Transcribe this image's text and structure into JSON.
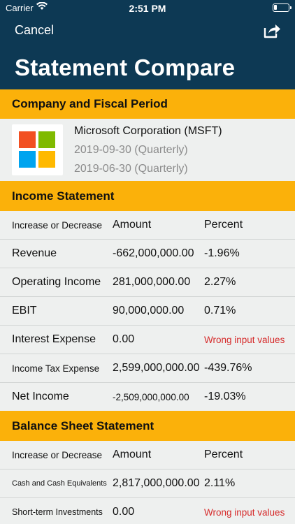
{
  "status_bar": {
    "carrier": "Carrier",
    "time": "2:51 PM"
  },
  "nav": {
    "cancel_label": "Cancel",
    "title": "Statement Compare"
  },
  "company_section": {
    "header": "Company and Fiscal Period",
    "company_name": "Microsoft Corporation (MSFT)",
    "period_1": "2019-09-30 (Quarterly)",
    "period_2": "2019-06-30 (Quarterly)"
  },
  "income_statement": {
    "header": "Income Statement",
    "columns": [
      "Increase or Decrease",
      "Amount",
      "Percent"
    ],
    "rows": [
      {
        "label": "Revenue",
        "amount": "-662,000,000.00",
        "percent": "-1.96%"
      },
      {
        "label": "Operating Income",
        "amount": "281,000,000.00",
        "percent": "2.27%"
      },
      {
        "label": "EBIT",
        "amount": "90,000,000.00",
        "percent": "0.71%"
      },
      {
        "label": "Interest Expense",
        "amount": "0.00",
        "percent": "Wrong input values"
      },
      {
        "label": "Income Tax Expense",
        "amount": "2,599,000,000.00",
        "percent": "-439.76%"
      },
      {
        "label": "Net Income",
        "amount": "-2,509,000,000.00",
        "percent": "-19.03%"
      }
    ]
  },
  "balance_sheet": {
    "header": "Balance Sheet Statement",
    "columns": [
      "Increase or Decrease",
      "Amount",
      "Percent"
    ],
    "rows": [
      {
        "label": "Cash and Cash Equivalents",
        "amount": "2,817,000,000.00",
        "percent": "2.11%"
      },
      {
        "label": "Short-term Investments",
        "amount": "0.00",
        "percent": "Wrong input values"
      }
    ]
  },
  "colors": {
    "nav_background": "#0d3954",
    "section_header": "#fbb10a",
    "error_text": "#d62b2b",
    "logo_red": "#f25022",
    "logo_green": "#7fba00",
    "logo_blue": "#00a4ef",
    "logo_yellow": "#ffb900"
  },
  "icons": [
    "wifi-icon",
    "battery-icon",
    "share-icon",
    "microsoft-logo"
  ]
}
